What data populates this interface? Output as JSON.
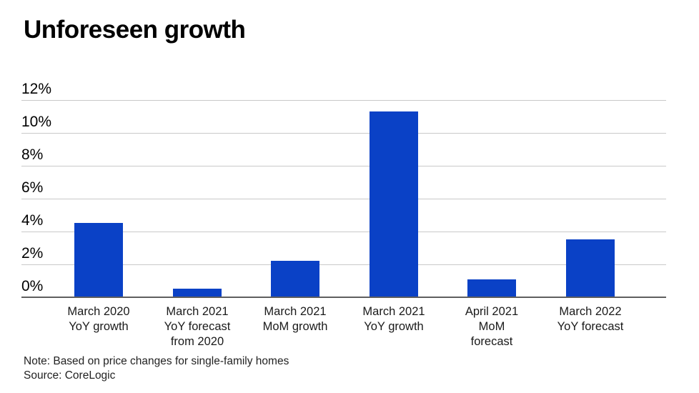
{
  "chart_data": {
    "type": "bar",
    "title": "Unforeseen growth",
    "categories": [
      "March 2020 YoY growth",
      "March 2021 YoY forecast from 2020",
      "March 2021 MoM growth",
      "March 2021 YoY growth",
      "April 2021 MoM forecast",
      "March 2022 YoY forecast"
    ],
    "category_lines": [
      [
        "March 2020",
        "YoY growth"
      ],
      [
        "March 2021",
        "YoY forecast",
        "from 2020"
      ],
      [
        "March 2021",
        "MoM growth"
      ],
      [
        "March 2021",
        "YoY growth"
      ],
      [
        "April 2021",
        "MoM",
        "forecast"
      ],
      [
        "March 2022",
        "YoY forecast"
      ]
    ],
    "values": [
      4.5,
      0.5,
      2.2,
      11.3,
      1.1,
      3.5
    ],
    "unit": "%",
    "ylim": [
      0,
      12
    ],
    "yticks": [
      {
        "value": 12,
        "label": "12%"
      },
      {
        "value": 10,
        "label": "10%"
      },
      {
        "value": 8,
        "label": "8%"
      },
      {
        "value": 6,
        "label": "6%"
      },
      {
        "value": 4,
        "label": "4%"
      },
      {
        "value": 2,
        "label": "2%"
      },
      {
        "value": 0,
        "label": "0%"
      }
    ],
    "grid": true,
    "legend": false,
    "bar_color": "#0a41c6",
    "gridline_color": "#c9c9c9",
    "axis_color": "#5f5f5f"
  },
  "notes": {
    "note": "Note: Based on price changes for single-family homes",
    "source": "Source: CoreLogic"
  }
}
